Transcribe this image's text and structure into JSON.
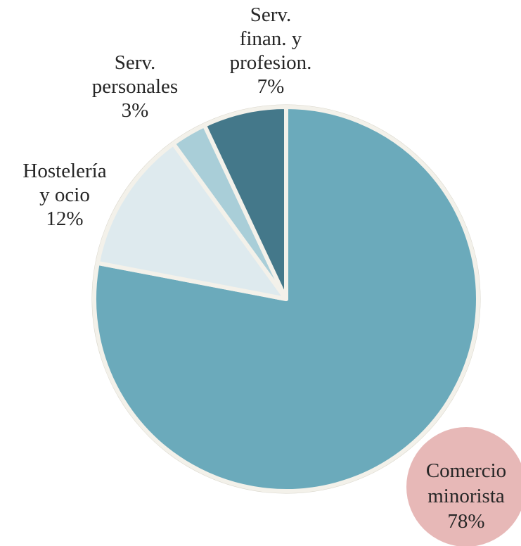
{
  "chart_data": {
    "type": "pie",
    "title": "",
    "start_angle_deg": 90,
    "direction": "clockwise",
    "slices": [
      {
        "label": [
          "Comercio",
          "minorista"
        ],
        "value": 78,
        "value_label": "78%",
        "color": "#6baabb",
        "label_bubble_color": "#e7b8b7"
      },
      {
        "label": [
          "Hostelería",
          "y ocio"
        ],
        "value": 12,
        "value_label": "12%",
        "color": "#deeaee"
      },
      {
        "label": [
          "Serv.",
          "personales"
        ],
        "value": 3,
        "value_label": "3%",
        "color": "#a9ced8"
      },
      {
        "label": [
          "Serv.",
          "finan. y",
          "profesion."
        ],
        "value": 7,
        "value_label": "7%",
        "color": "#44788a"
      }
    ],
    "slice_border_color": "#f3f1ea",
    "legend": "none"
  }
}
